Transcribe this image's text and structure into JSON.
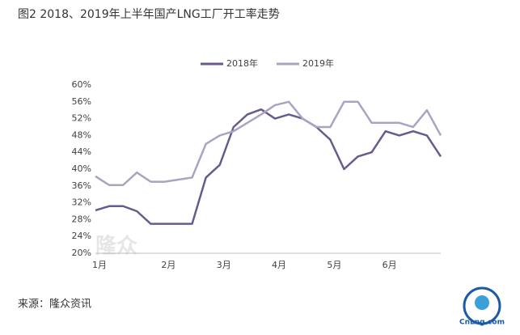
{
  "chart_data": {
    "type": "line",
    "title": "图2 2018、2019年上半年国产LNG工厂开工率走势",
    "source": "来源：隆众资讯",
    "watermark": "隆众",
    "logo_text": "CnLng.com",
    "categories": [
      "1月",
      null,
      null,
      null,
      null,
      "2月",
      null,
      null,
      null,
      "3月",
      null,
      null,
      null,
      "4月",
      null,
      null,
      null,
      "5月",
      null,
      null,
      null,
      "6月",
      null,
      null,
      null,
      null
    ],
    "series": [
      {
        "name": "2018年",
        "color": "#6a5a8c",
        "values": [
          30.2,
          31.2,
          31.2,
          30,
          27,
          27,
          27,
          27,
          38,
          41,
          50,
          53,
          54.2,
          52,
          53,
          52,
          50,
          47,
          40,
          43,
          44,
          49,
          48,
          49,
          48,
          43
        ]
      },
      {
        "name": "2019年",
        "color": "#aaa4c0",
        "values": [
          38.3,
          36.2,
          36.2,
          39.2,
          37,
          37,
          37.5,
          38,
          46,
          48,
          49,
          51,
          53,
          55.2,
          56,
          52,
          50,
          50,
          56,
          56,
          51,
          51,
          51,
          50,
          54,
          48
        ]
      }
    ],
    "ylim": [
      20,
      60
    ],
    "yticks": [
      {
        "value": 20,
        "label": "20%"
      },
      {
        "value": 24,
        "label": "24%"
      },
      {
        "value": 28,
        "label": "28%"
      },
      {
        "value": 32,
        "label": "32%"
      },
      {
        "value": 36,
        "label": "36%"
      },
      {
        "value": 40,
        "label": "40%"
      },
      {
        "value": 44,
        "label": "44%"
      },
      {
        "value": 48,
        "label": "48%"
      },
      {
        "value": 52,
        "label": "52%"
      },
      {
        "value": 56,
        "label": "56%"
      },
      {
        "value": 60,
        "label": "60%"
      }
    ],
    "grid": false,
    "legend": "top"
  }
}
